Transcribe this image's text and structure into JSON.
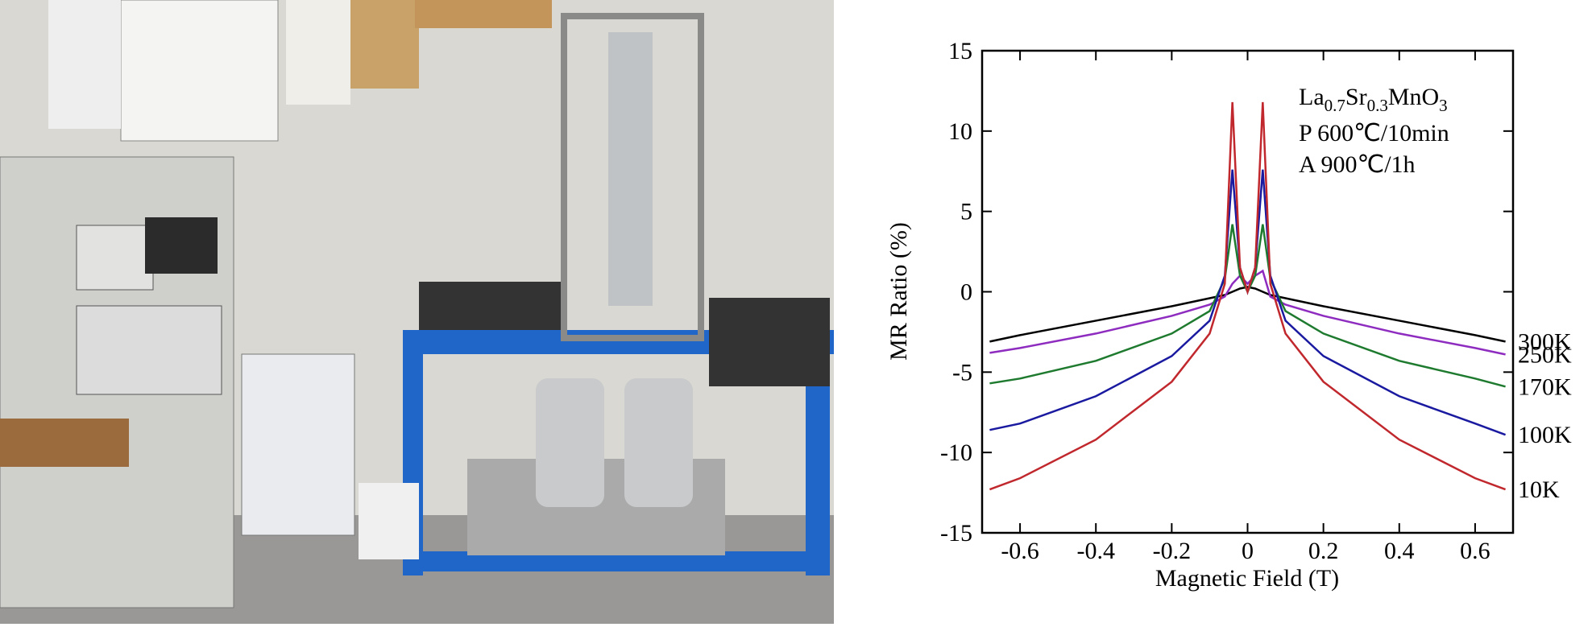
{
  "chart_data": {
    "type": "line",
    "xlabel": "Magnetic Field (T)",
    "ylabel": "MR Ratio (%)",
    "annotation_formula": [
      "La",
      "0.7",
      "Sr",
      "0.3",
      "MnO",
      "3"
    ],
    "annotations": [
      "P 600℃/10min",
      "A 900℃/1h"
    ],
    "xlim": [
      -0.7,
      0.7
    ],
    "xticks": [
      -0.6,
      -0.4,
      -0.2,
      0,
      0.2,
      0.4,
      0.6
    ],
    "ylim": [
      -15,
      15
    ],
    "yticks": [
      -15,
      -10,
      -5,
      0,
      5,
      10,
      15
    ],
    "x": [
      -0.68,
      -0.6,
      -0.4,
      -0.2,
      -0.1,
      -0.06,
      -0.04,
      -0.02,
      0,
      0.02,
      0.04,
      0.06,
      0.1,
      0.2,
      0.4,
      0.6,
      0.68
    ],
    "series": [
      {
        "name": "300K",
        "color": "#000000",
        "values": [
          -3.1,
          -2.7,
          -1.8,
          -0.9,
          -0.4,
          -0.2,
          0,
          0.2,
          0.3,
          0.2,
          0,
          -0.2,
          -0.4,
          -0.9,
          -1.8,
          -2.7,
          -3.1
        ]
      },
      {
        "name": "250K",
        "color": "#8e2cc0",
        "values": [
          -3.8,
          -3.5,
          -2.6,
          -1.5,
          -0.8,
          -0.3,
          0.5,
          1,
          0.5,
          1,
          1.3,
          -0.3,
          -0.8,
          -1.5,
          -2.6,
          -3.5,
          -3.9
        ]
      },
      {
        "name": "170K",
        "color": "#1e7a2e",
        "values": [
          -5.7,
          -5.4,
          -4.3,
          -2.6,
          -1.2,
          0.8,
          4.2,
          1,
          0,
          1,
          4.2,
          0.8,
          -1.2,
          -2.6,
          -4.3,
          -5.4,
          -5.9
        ]
      },
      {
        "name": "100K",
        "color": "#1a1aa0",
        "values": [
          -8.6,
          -8.2,
          -6.5,
          -4.0,
          -1.8,
          1,
          7.6,
          1.5,
          0,
          1.5,
          7.6,
          1,
          -1.8,
          -4.0,
          -6.5,
          -8.2,
          -8.9
        ]
      },
      {
        "name": "10K",
        "color": "#c0282d",
        "values": [
          -12.3,
          -11.6,
          -9.2,
          -5.6,
          -2.6,
          0.5,
          11.8,
          1.5,
          0,
          1.5,
          11.8,
          0.5,
          -2.6,
          -5.6,
          -9.2,
          -11.6,
          -12.3
        ]
      }
    ]
  }
}
